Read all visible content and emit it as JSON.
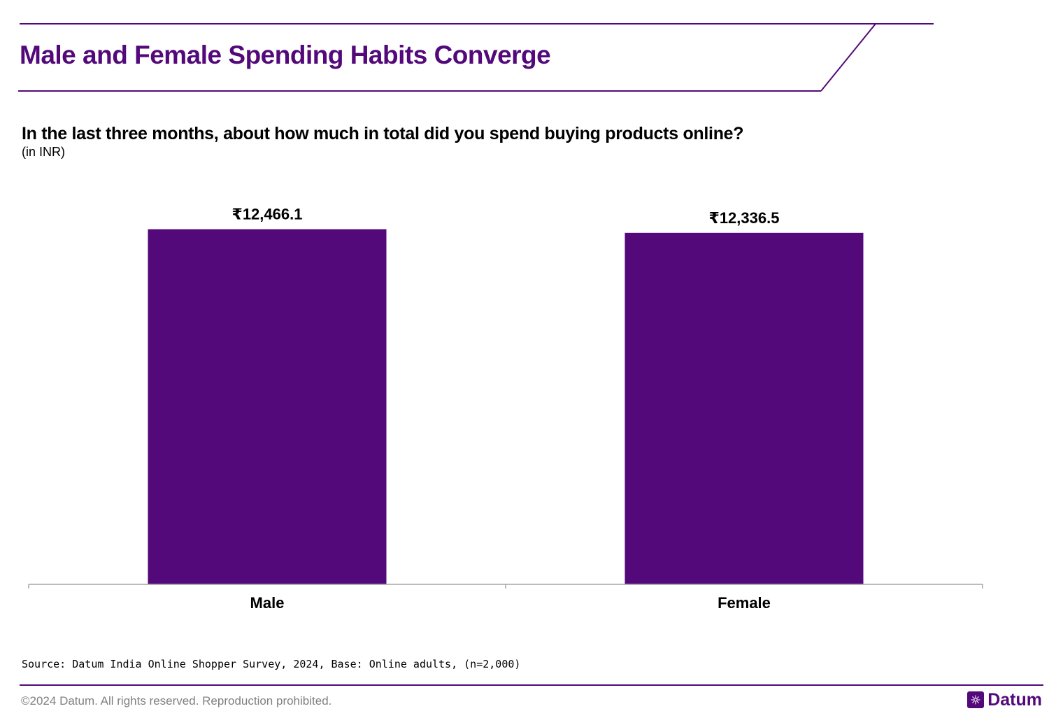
{
  "header": {
    "title": "Male and Female Spending Habits Converge"
  },
  "subheader": {
    "question": "In the last three months, about how much in total did you spend buying products online?",
    "unit": "(in INR)"
  },
  "chart_data": {
    "type": "bar",
    "title": "In the last three months, about how much in total did you spend buying products online?",
    "subtitle": "(in INR)",
    "categories": [
      "Male",
      "Female"
    ],
    "values": [
      12466.1,
      12336.5
    ],
    "value_labels": [
      "₹12,466.1",
      "₹12,336.5"
    ],
    "xlabel": "",
    "ylabel": "",
    "ylim": [
      0,
      12700
    ],
    "grid": false,
    "bar_color": "#53097a"
  },
  "footer": {
    "source": "Source: Datum India Online Shopper Survey, 2024, Base: Online adults, (n=2,000)",
    "copyright": "©2024 Datum. All rights reserved. Reproduction prohibited.",
    "logo_text": "Datum"
  },
  "colors": {
    "accent": "#53097a",
    "axis": "#a6a6a6",
    "muted_text": "#808080"
  }
}
